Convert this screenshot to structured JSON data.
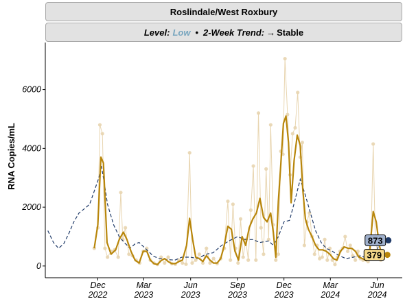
{
  "panel": {
    "title": "Roslindale/West Roxbury",
    "level_label": "Level:",
    "level_value": "Low",
    "separator": "•",
    "trend_label": "2-Week Trend:",
    "trend_arrow": "→",
    "trend_value": "Stable"
  },
  "colors": {
    "level_low": "#78a6bf",
    "series_main": "#b8860b",
    "series_raw": "#e8d5b0",
    "series_dashed": "#1f3a68",
    "label_main_fill": "#f5d98b",
    "label_dashed_fill": "#9fb0cc"
  },
  "chart_data": {
    "type": "line",
    "ylabel": "RNA Copies/mL",
    "ylim": [
      -400,
      7600
    ],
    "y_ticks": [
      0,
      2000,
      4000,
      6000
    ],
    "xlim": [
      "2022-08-20",
      "2024-07-20"
    ],
    "x_ticks": [
      {
        "date": "2022-12-01",
        "line1": "Dec",
        "line2": "2022"
      },
      {
        "date": "2023-03-01",
        "line1": "Mar",
        "line2": "2023"
      },
      {
        "date": "2023-06-01",
        "line1": "Jun",
        "line2": "2023"
      },
      {
        "date": "2023-09-01",
        "line1": "Sep",
        "line2": "2023"
      },
      {
        "date": "2023-12-01",
        "line1": "Dec",
        "line2": "2023"
      },
      {
        "date": "2024-03-01",
        "line1": "Mar",
        "line2": "2024"
      },
      {
        "date": "2024-06-01",
        "line1": "Jun",
        "line2": "2024"
      }
    ],
    "series": [
      {
        "style": "raw",
        "points": [
          [
            "2022-11-24",
            600
          ],
          [
            "2022-12-01",
            1300
          ],
          [
            "2022-12-05",
            4800
          ],
          [
            "2022-12-10",
            4500
          ],
          [
            "2022-12-15",
            600
          ],
          [
            "2022-12-20",
            300
          ],
          [
            "2022-12-27",
            500
          ],
          [
            "2023-01-03",
            550
          ],
          [
            "2023-01-10",
            300
          ],
          [
            "2023-01-15",
            2500
          ],
          [
            "2023-01-19",
            900
          ],
          [
            "2023-01-24",
            1300
          ],
          [
            "2023-01-31",
            400
          ],
          [
            "2023-02-07",
            350
          ],
          [
            "2023-02-14",
            200
          ],
          [
            "2023-02-21",
            100
          ],
          [
            "2023-02-28",
            500
          ],
          [
            "2023-03-07",
            600
          ],
          [
            "2023-03-14",
            200
          ],
          [
            "2023-03-21",
            100
          ],
          [
            "2023-03-28",
            50
          ],
          [
            "2023-04-04",
            300
          ],
          [
            "2023-04-11",
            100
          ],
          [
            "2023-04-18",
            300
          ],
          [
            "2023-04-25",
            80
          ],
          [
            "2023-05-02",
            60
          ],
          [
            "2023-05-09",
            200
          ],
          [
            "2023-05-16",
            100
          ],
          [
            "2023-05-23",
            60
          ],
          [
            "2023-05-30",
            3850
          ],
          [
            "2023-06-04",
            100
          ],
          [
            "2023-06-11",
            200
          ],
          [
            "2023-06-18",
            400
          ],
          [
            "2023-06-25",
            100
          ],
          [
            "2023-07-02",
            600
          ],
          [
            "2023-07-09",
            100
          ],
          [
            "2023-07-16",
            250
          ],
          [
            "2023-07-23",
            80
          ],
          [
            "2023-07-30",
            250
          ],
          [
            "2023-08-06",
            600
          ],
          [
            "2023-08-13",
            2200
          ],
          [
            "2023-08-18",
            200
          ],
          [
            "2023-08-23",
            2100
          ],
          [
            "2023-08-28",
            600
          ],
          [
            "2023-09-02",
            100
          ],
          [
            "2023-09-07",
            1600
          ],
          [
            "2023-09-12",
            300
          ],
          [
            "2023-09-17",
            900
          ],
          [
            "2023-09-22",
            200
          ],
          [
            "2023-09-27",
            1900
          ],
          [
            "2023-10-02",
            3400
          ],
          [
            "2023-10-07",
            200
          ],
          [
            "2023-10-12",
            5200
          ],
          [
            "2023-10-17",
            1300
          ],
          [
            "2023-10-22",
            400
          ],
          [
            "2023-10-27",
            3300
          ],
          [
            "2023-11-01",
            900
          ],
          [
            "2023-11-05",
            4800
          ],
          [
            "2023-11-10",
            1400
          ],
          [
            "2023-11-15",
            200
          ],
          [
            "2023-11-20",
            400
          ],
          [
            "2023-11-25",
            3900
          ],
          [
            "2023-11-29",
            3800
          ],
          [
            "2023-12-03",
            7050
          ],
          [
            "2023-12-08",
            5150
          ],
          [
            "2023-12-13",
            3100
          ],
          [
            "2023-12-18",
            4500
          ],
          [
            "2023-12-23",
            4700
          ],
          [
            "2023-12-28",
            5900
          ],
          [
            "2024-01-02",
            3700
          ],
          [
            "2024-01-06",
            4200
          ],
          [
            "2024-01-10",
            700
          ],
          [
            "2024-01-15",
            1500
          ],
          [
            "2024-01-20",
            1800
          ],
          [
            "2024-01-25",
            1000
          ],
          [
            "2024-01-30",
            400
          ],
          [
            "2024-02-04",
            700
          ],
          [
            "2024-02-09",
            250
          ],
          [
            "2024-02-14",
            300
          ],
          [
            "2024-02-19",
            900
          ],
          [
            "2024-02-24",
            200
          ],
          [
            "2024-02-29",
            600
          ],
          [
            "2024-03-05",
            200
          ],
          [
            "2024-03-10",
            50
          ],
          [
            "2024-03-15",
            300
          ],
          [
            "2024-03-20",
            500
          ],
          [
            "2024-03-25",
            600
          ],
          [
            "2024-03-30",
            1000
          ],
          [
            "2024-04-04",
            500
          ],
          [
            "2024-04-09",
            700
          ],
          [
            "2024-04-14",
            350
          ],
          [
            "2024-04-19",
            200
          ],
          [
            "2024-04-24",
            500
          ],
          [
            "2024-04-29",
            250
          ],
          [
            "2024-05-04",
            200
          ],
          [
            "2024-05-09",
            300
          ],
          [
            "2024-05-14",
            150
          ],
          [
            "2024-05-19",
            400
          ],
          [
            "2024-05-24",
            4150
          ],
          [
            "2024-05-28",
            1000
          ],
          [
            "2024-06-02",
            400
          ],
          [
            "2024-06-08",
            200
          ],
          [
            "2024-06-13",
            250
          ]
        ]
      },
      {
        "style": "smoothed",
        "points": [
          [
            "2022-11-24",
            600
          ],
          [
            "2022-12-01",
            1400
          ],
          [
            "2022-12-07",
            3700
          ],
          [
            "2022-12-12",
            3500
          ],
          [
            "2022-12-19",
            800
          ],
          [
            "2022-12-27",
            400
          ],
          [
            "2023-01-05",
            550
          ],
          [
            "2023-01-12",
            900
          ],
          [
            "2023-01-20",
            1150
          ],
          [
            "2023-01-27",
            900
          ],
          [
            "2023-02-04",
            500
          ],
          [
            "2023-02-12",
            200
          ],
          [
            "2023-02-20",
            100
          ],
          [
            "2023-02-28",
            500
          ],
          [
            "2023-03-07",
            500
          ],
          [
            "2023-03-14",
            200
          ],
          [
            "2023-03-21",
            80
          ],
          [
            "2023-03-28",
            50
          ],
          [
            "2023-04-04",
            180
          ],
          [
            "2023-04-11",
            250
          ],
          [
            "2023-04-18",
            150
          ],
          [
            "2023-04-25",
            80
          ],
          [
            "2023-05-02",
            80
          ],
          [
            "2023-05-09",
            150
          ],
          [
            "2023-05-16",
            200
          ],
          [
            "2023-05-24",
            700
          ],
          [
            "2023-05-30",
            1620
          ],
          [
            "2023-06-05",
            900
          ],
          [
            "2023-06-11",
            300
          ],
          [
            "2023-06-18",
            250
          ],
          [
            "2023-06-25",
            150
          ],
          [
            "2023-07-02",
            350
          ],
          [
            "2023-07-09",
            200
          ],
          [
            "2023-07-16",
            100
          ],
          [
            "2023-07-23",
            100
          ],
          [
            "2023-07-30",
            250
          ],
          [
            "2023-08-06",
            700
          ],
          [
            "2023-08-13",
            1350
          ],
          [
            "2023-08-20",
            1250
          ],
          [
            "2023-08-27",
            500
          ],
          [
            "2023-09-03",
            200
          ],
          [
            "2023-09-10",
            1000
          ],
          [
            "2023-09-17",
            700
          ],
          [
            "2023-09-24",
            1300
          ],
          [
            "2023-10-01",
            1600
          ],
          [
            "2023-10-08",
            1800
          ],
          [
            "2023-10-15",
            2300
          ],
          [
            "2023-10-22",
            1650
          ],
          [
            "2023-10-29",
            1500
          ],
          [
            "2023-11-05",
            1800
          ],
          [
            "2023-11-10",
            1150
          ],
          [
            "2023-11-15",
            300
          ],
          [
            "2023-11-20",
            2200
          ],
          [
            "2023-11-25",
            3500
          ],
          [
            "2023-11-30",
            4850
          ],
          [
            "2023-12-05",
            5100
          ],
          [
            "2023-12-10",
            4200
          ],
          [
            "2023-12-15",
            2150
          ],
          [
            "2023-12-21",
            3600
          ],
          [
            "2023-12-27",
            4450
          ],
          [
            "2024-01-02",
            4100
          ],
          [
            "2024-01-07",
            2600
          ],
          [
            "2024-01-12",
            1600
          ],
          [
            "2024-01-18",
            1250
          ],
          [
            "2024-01-25",
            1000
          ],
          [
            "2024-02-01",
            700
          ],
          [
            "2024-02-08",
            550
          ],
          [
            "2024-02-15",
            550
          ],
          [
            "2024-02-22",
            500
          ],
          [
            "2024-02-29",
            400
          ],
          [
            "2024-03-07",
            250
          ],
          [
            "2024-03-14",
            200
          ],
          [
            "2024-03-21",
            500
          ],
          [
            "2024-03-28",
            650
          ],
          [
            "2024-04-05",
            600
          ],
          [
            "2024-04-12",
            600
          ],
          [
            "2024-04-19",
            500
          ],
          [
            "2024-04-26",
            300
          ],
          [
            "2024-05-03",
            250
          ],
          [
            "2024-05-10",
            180
          ],
          [
            "2024-05-17",
            500
          ],
          [
            "2024-05-24",
            1850
          ],
          [
            "2024-05-30",
            1500
          ],
          [
            "2024-06-05",
            700
          ],
          [
            "2024-06-10",
            379
          ]
        ],
        "end_label": "379"
      },
      {
        "style": "dashed",
        "points": [
          [
            "2022-08-25",
            1200
          ],
          [
            "2022-09-05",
            800
          ],
          [
            "2022-09-15",
            600
          ],
          [
            "2022-09-25",
            750
          ],
          [
            "2022-10-05",
            1100
          ],
          [
            "2022-10-15",
            1500
          ],
          [
            "2022-10-25",
            1800
          ],
          [
            "2022-11-05",
            1950
          ],
          [
            "2022-11-15",
            2100
          ],
          [
            "2022-11-25",
            2600
          ],
          [
            "2022-12-03",
            3000
          ],
          [
            "2022-12-08",
            3400
          ],
          [
            "2022-12-13",
            2900
          ],
          [
            "2022-12-20",
            2100
          ],
          [
            "2023-01-01",
            1400
          ],
          [
            "2023-01-12",
            1000
          ],
          [
            "2023-01-22",
            800
          ],
          [
            "2023-02-02",
            600
          ],
          [
            "2023-02-12",
            750
          ],
          [
            "2023-02-20",
            800
          ],
          [
            "2023-03-01",
            650
          ],
          [
            "2023-03-10",
            500
          ],
          [
            "2023-03-20",
            330
          ],
          [
            "2023-04-01",
            250
          ],
          [
            "2023-04-15",
            220
          ],
          [
            "2023-05-01",
            200
          ],
          [
            "2023-05-15",
            300
          ],
          [
            "2023-06-01",
            300
          ],
          [
            "2023-06-15",
            250
          ],
          [
            "2023-07-01",
            400
          ],
          [
            "2023-07-15",
            450
          ],
          [
            "2023-08-01",
            700
          ],
          [
            "2023-08-15",
            850
          ],
          [
            "2023-09-01",
            1000
          ],
          [
            "2023-09-15",
            900
          ],
          [
            "2023-10-01",
            900
          ],
          [
            "2023-10-15",
            800
          ],
          [
            "2023-11-01",
            850
          ],
          [
            "2023-11-10",
            700
          ],
          [
            "2023-11-20",
            1000
          ],
          [
            "2023-12-01",
            1500
          ],
          [
            "2023-12-12",
            1550
          ],
          [
            "2023-12-22",
            2200
          ],
          [
            "2024-01-02",
            2950
          ],
          [
            "2024-01-12",
            2400
          ],
          [
            "2024-01-22",
            1800
          ],
          [
            "2024-02-01",
            1200
          ],
          [
            "2024-02-12",
            800
          ],
          [
            "2024-02-22",
            600
          ],
          [
            "2024-03-05",
            500
          ],
          [
            "2024-03-18",
            350
          ],
          [
            "2024-04-01",
            250
          ],
          [
            "2024-04-15",
            300
          ],
          [
            "2024-05-01",
            350
          ],
          [
            "2024-05-15",
            200
          ],
          [
            "2024-05-28",
            300
          ],
          [
            "2024-06-05",
            800
          ],
          [
            "2024-06-12",
            873
          ]
        ],
        "end_label": "873"
      }
    ]
  }
}
